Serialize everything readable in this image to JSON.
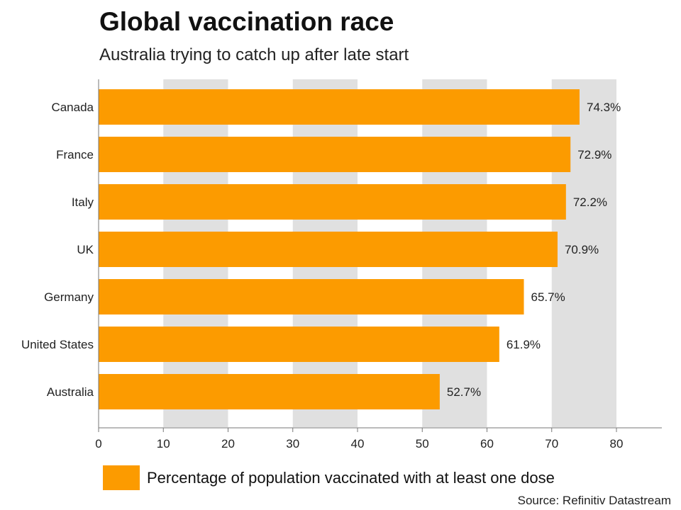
{
  "title": "Global vaccination race",
  "subtitle": "Australia trying to catch up after late start",
  "source": "Source: Refinitiv Datastream",
  "chart_data": {
    "type": "bar",
    "orientation": "horizontal",
    "title": "Global vaccination race",
    "subtitle": "Australia trying to catch up after late start",
    "categories": [
      "Canada",
      "France",
      "Italy",
      "UK",
      "Germany",
      "United States",
      "Australia"
    ],
    "values": [
      74.3,
      72.9,
      72.2,
      70.9,
      65.7,
      61.9,
      52.7
    ],
    "value_labels": [
      "74.3%",
      "72.9%",
      "72.2%",
      "70.9%",
      "65.7%",
      "61.9%",
      "52.7%"
    ],
    "xlim": [
      0,
      87
    ],
    "xticks": [
      0,
      10,
      20,
      30,
      40,
      50,
      60,
      70,
      80
    ],
    "xlabel": "",
    "ylabel": "",
    "series_name": "Percentage of population vaccinated with at least one dose",
    "legend_position": "bottom",
    "grid": "alternating vertical bands",
    "colors": {
      "bar": "#fc9b00",
      "band": "#e0e0e0",
      "axis": "#777777"
    }
  }
}
